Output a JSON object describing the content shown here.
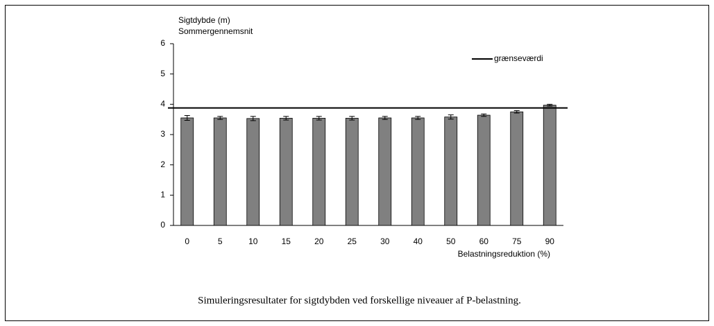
{
  "chart_data": {
    "type": "bar",
    "ylabel": [
      "Sigtdybde (m)",
      "Sommergennemsnit"
    ],
    "xlabel": "Belastningsreduktion (%)",
    "caption": "Simuleringsresultater for sigtdybden ved forskellige niveauer af P-belastning.",
    "categories": [
      "0",
      "5",
      "10",
      "15",
      "20",
      "25",
      "30",
      "40",
      "50",
      "60",
      "75",
      "90"
    ],
    "values": [
      3.55,
      3.55,
      3.53,
      3.54,
      3.54,
      3.54,
      3.55,
      3.55,
      3.58,
      3.64,
      3.75,
      3.97
    ],
    "errors": [
      0.08,
      0.05,
      0.07,
      0.06,
      0.06,
      0.06,
      0.05,
      0.05,
      0.07,
      0.04,
      0.04,
      0.03
    ],
    "color": "#808080",
    "reference_line": {
      "name": "grænseværdi",
      "value": 3.88,
      "color": "#000000"
    },
    "legend": "upper right",
    "ylim": [
      0,
      6
    ],
    "yticks": [
      0,
      1,
      2,
      3,
      4,
      5,
      6
    ]
  }
}
